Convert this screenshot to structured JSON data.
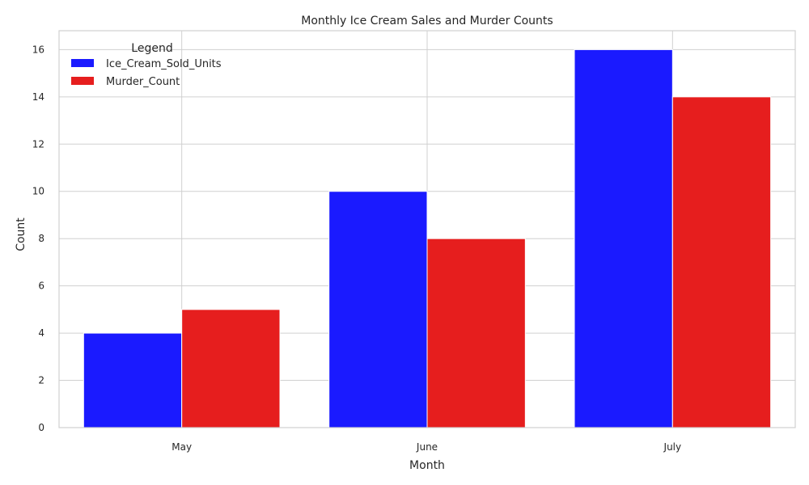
{
  "chart_data": {
    "type": "bar",
    "title": "Monthly Ice Cream Sales and Murder Counts",
    "xlabel": "Month",
    "ylabel": "Count",
    "categories": [
      "May",
      "June",
      "July"
    ],
    "series": [
      {
        "name": "Ice_Cream_Sold_Units",
        "values": [
          4,
          10,
          16
        ],
        "color": "#1a1aff"
      },
      {
        "name": "Murder_Count",
        "values": [
          5,
          8,
          14
        ],
        "color": "#e61e1e"
      }
    ],
    "ylim": [
      0,
      16.8
    ],
    "yticks": [
      0,
      2,
      4,
      6,
      8,
      10,
      12,
      14,
      16
    ],
    "grid": true,
    "legend": {
      "title": "Legend",
      "placement": "top-left"
    }
  }
}
